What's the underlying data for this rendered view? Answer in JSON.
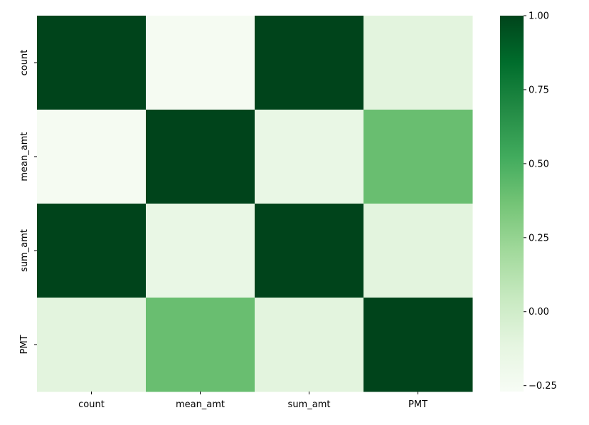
{
  "chart_data": {
    "type": "heatmap",
    "title": "",
    "xlabel": "",
    "ylabel": "",
    "x_labels": [
      "count",
      "mean_amt",
      "sum_amt",
      "PMT"
    ],
    "y_labels": [
      "count",
      "mean_amt",
      "sum_amt",
      "PMT"
    ],
    "values": [
      [
        1.0,
        -0.25,
        1.0,
        -0.1
      ],
      [
        -0.25,
        1.0,
        -0.15,
        0.4
      ],
      [
        1.0,
        -0.15,
        1.0,
        -0.1
      ],
      [
        -0.1,
        0.4,
        -0.1,
        1.0
      ]
    ],
    "colorbar": {
      "min": -0.27,
      "max": 1.0,
      "ticks": [
        1.0,
        0.75,
        0.5,
        0.25,
        0.0,
        -0.25
      ],
      "tick_labels": [
        "1.00",
        "0.75",
        "0.50",
        "0.25",
        "0.00",
        "−0.25"
      ],
      "colormap": "Greens"
    },
    "grid": false,
    "legend": "colorbar-right"
  }
}
